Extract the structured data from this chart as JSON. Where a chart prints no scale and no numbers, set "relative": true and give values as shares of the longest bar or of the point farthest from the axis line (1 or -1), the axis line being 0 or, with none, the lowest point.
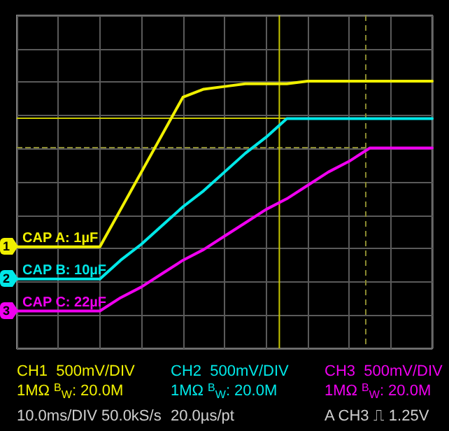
{
  "chart_data": {
    "type": "line",
    "relative": true,
    "grid": true,
    "legend": "left",
    "marker": "none",
    "line_style": "solid",
    "categories": [
      null,
      null,
      null,
      null,
      null,
      null,
      null,
      null,
      null,
      null,
      null,
      null,
      null,
      null,
      null,
      null,
      null,
      null,
      null,
      null,
      null
    ],
    "series": [
      {
        "name": "CAP A: 1µF",
        "color": "#f0f000",
        "values": [
          0.38,
          0.38,
          0.38,
          0.38,
          0.38,
          0.52,
          0.66,
          0.8,
          0.94,
          0.97,
          0.98,
          0.99,
          0.99,
          0.99,
          1,
          1,
          1,
          1,
          1,
          1,
          1
        ]
      },
      {
        "name": "CAP B: 10µF",
        "color": "#00e8e8",
        "values": [
          0.26,
          0.26,
          0.26,
          0.26,
          0.26,
          0.33,
          0.39,
          0.46,
          0.53,
          0.59,
          0.66,
          0.73,
          0.79,
          0.86,
          0.86,
          0.86,
          0.86,
          0.86,
          0.86,
          0.86,
          0.86
        ]
      },
      {
        "name": "CAP C: 22µF",
        "color": "#f000f0",
        "values": [
          0.14,
          0.14,
          0.14,
          0.14,
          0.14,
          0.19,
          0.23,
          0.28,
          0.33,
          0.37,
          0.42,
          0.47,
          0.52,
          0.56,
          0.61,
          0.66,
          0.7,
          0.75,
          0.75,
          0.75,
          0.75
        ]
      }
    ],
    "ref_lines": [
      {
        "axis": "y",
        "value": 0.86,
        "color": "#c8c800",
        "line_style": "solid"
      },
      {
        "axis": "y",
        "value": 0.75,
        "color": "#8a8a30",
        "line_style": "dashed"
      }
    ],
    "annotations": [
      "1",
      "2",
      "3",
      "CH1  500mV/DIV",
      "1MΩ $^{B}$$_{W}$: 20.0M",
      "CH2  500mV/DIV",
      "1MΩ $^{B}$$_{W}$: 20.0M",
      "CH3  500mV/DIV",
      "1MΩ $^{B}$$_{W}$: 20.0M",
      "10.0ms/DIV 50.0kS/s",
      "20.0µs/pt",
      "A CH3 ⎍ 1.25V"
    ]
  }
}
